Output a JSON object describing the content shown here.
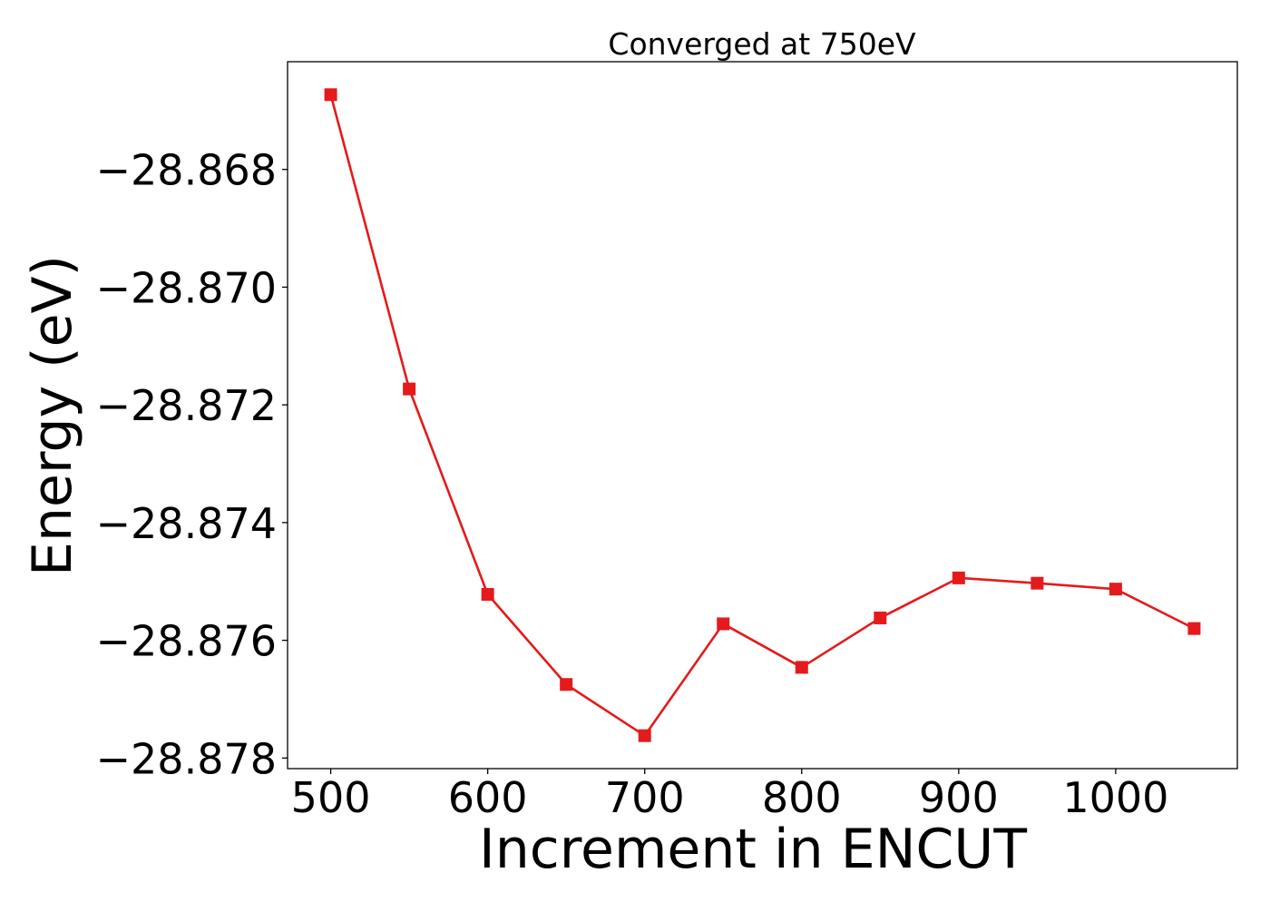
{
  "chart_data": {
    "type": "line",
    "title": "Converged at 750eV",
    "xlabel": "Increment in ENCUT",
    "ylabel": "Energy (eV)",
    "xlim": [
      472.5,
      1077.5
    ],
    "ylim": [
      -28.87818,
      -28.86617
    ],
    "x_ticks": [
      500,
      600,
      700,
      800,
      900,
      1000
    ],
    "y_ticks": [
      -28.868,
      -28.87,
      -28.872,
      -28.874,
      -28.876,
      -28.878
    ],
    "x_tick_labels": [
      "500",
      "600",
      "700",
      "800",
      "900",
      "1000"
    ],
    "y_tick_labels": [
      "−28.868",
      "−28.870",
      "−28.872",
      "−28.874",
      "−28.876",
      "−28.878"
    ],
    "grid": false,
    "series": [
      {
        "color": "#e41a1c",
        "marker": "square",
        "x": [
          500,
          550,
          600,
          650,
          700,
          750,
          800,
          850,
          900,
          950,
          1000,
          1050
        ],
        "y": [
          -28.86673,
          -28.87173,
          -28.87522,
          -28.87675,
          -28.87762,
          -28.87572,
          -28.87646,
          -28.87562,
          -28.87494,
          -28.87503,
          -28.87513,
          -28.8758
        ]
      }
    ]
  }
}
